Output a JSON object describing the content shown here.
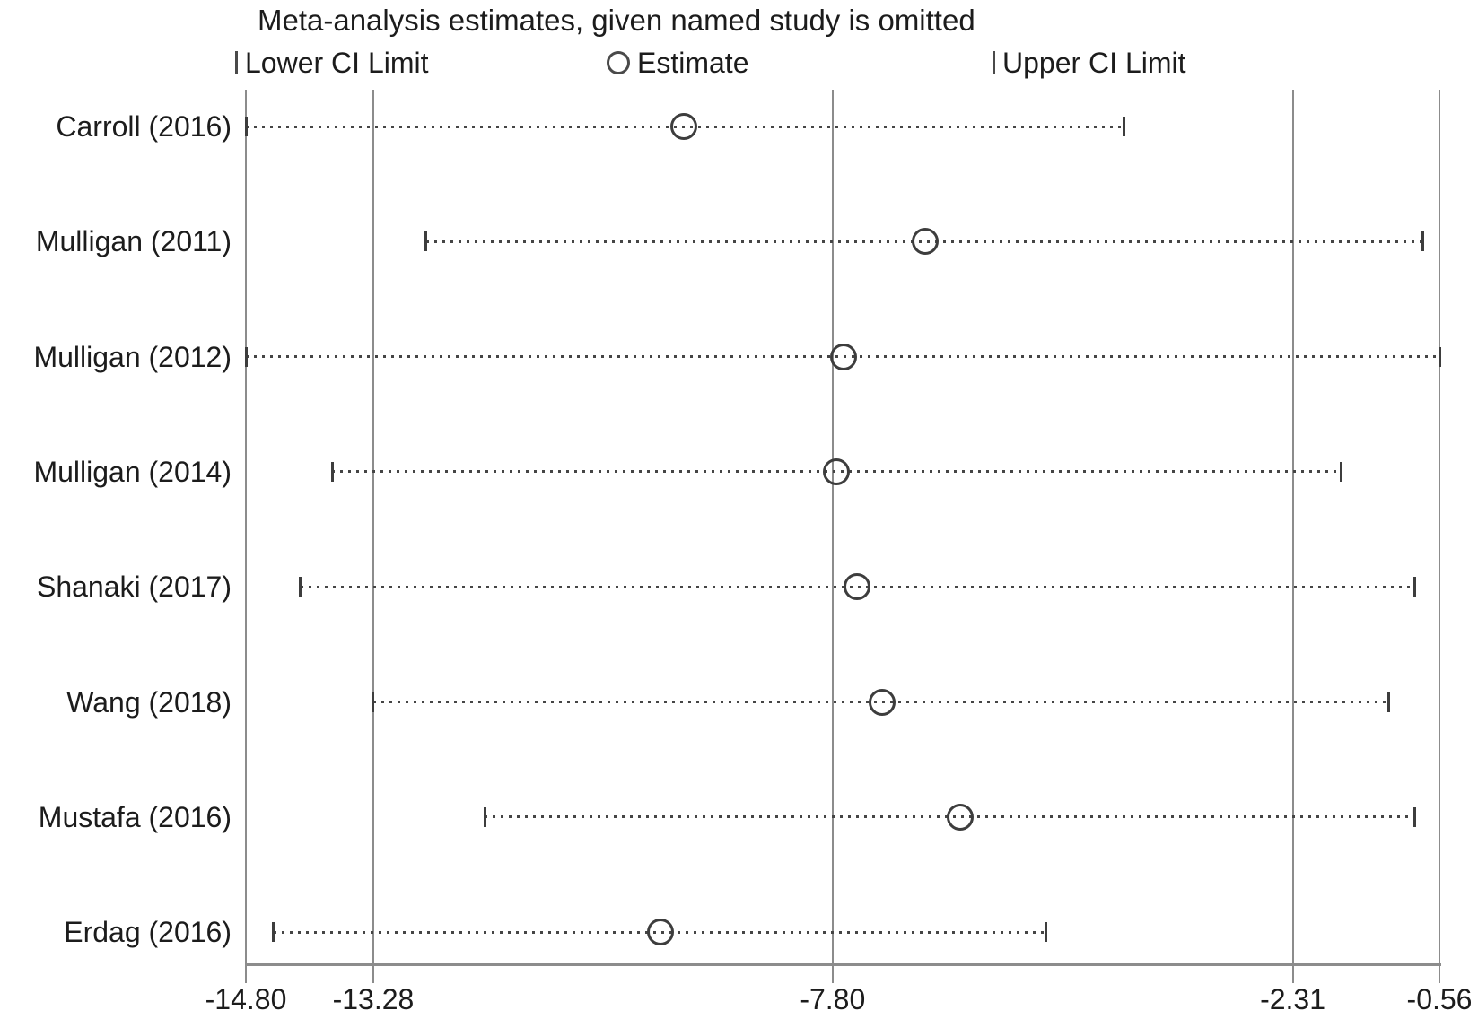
{
  "chart_data": {
    "type": "scatter",
    "title": "Meta-analysis estimates, given named study is omitted",
    "legend": [
      {
        "marker": "tick",
        "label": "Lower CI Limit"
      },
      {
        "marker": "circle",
        "label": "Estimate"
      },
      {
        "marker": "tick",
        "label": "Upper CI Limit"
      }
    ],
    "x_axis": {
      "min": -14.8,
      "max": -0.56,
      "tick_values": [
        -14.8,
        -13.28,
        -7.8,
        -2.31,
        -0.56
      ],
      "tick_labels": [
        "-14.80",
        "-13.28",
        "-7.80",
        "-2.31",
        "-0.56"
      ],
      "gridline_values": [
        -14.8,
        -13.28,
        -7.8,
        -2.31,
        -0.56
      ],
      "grid": true
    },
    "overall_estimate": -7.8,
    "overall_ci_lower": -13.28,
    "overall_ci_upper": -2.31,
    "studies": [
      {
        "label": "Carroll (2016)",
        "lower": -14.8,
        "estimate": -9.58,
        "upper": -4.32
      },
      {
        "label": "Mulligan (2011)",
        "lower": -12.65,
        "estimate": -6.69,
        "upper": -0.76
      },
      {
        "label": "Mulligan (2012)",
        "lower": -14.8,
        "estimate": -7.67,
        "upper": -0.56
      },
      {
        "label": "Mulligan (2014)",
        "lower": -13.77,
        "estimate": -7.76,
        "upper": -1.73
      },
      {
        "label": "Shanaki (2017)",
        "lower": -14.15,
        "estimate": -7.51,
        "upper": -0.85
      },
      {
        "label": "Wang (2018)",
        "lower": -13.28,
        "estimate": -7.21,
        "upper": -1.17
      },
      {
        "label": "Mustafa (2016)",
        "lower": -11.95,
        "estimate": -6.28,
        "upper": -0.85
      },
      {
        "label": "Erdag (2016)",
        "lower": -14.47,
        "estimate": -9.85,
        "upper": -5.25
      }
    ],
    "colors": {
      "gridline": "#8c8c8c",
      "marker": "#3d3d3d",
      "dotted_line": "#454545",
      "text": "#1c1c1c"
    },
    "legend_position": "top"
  }
}
